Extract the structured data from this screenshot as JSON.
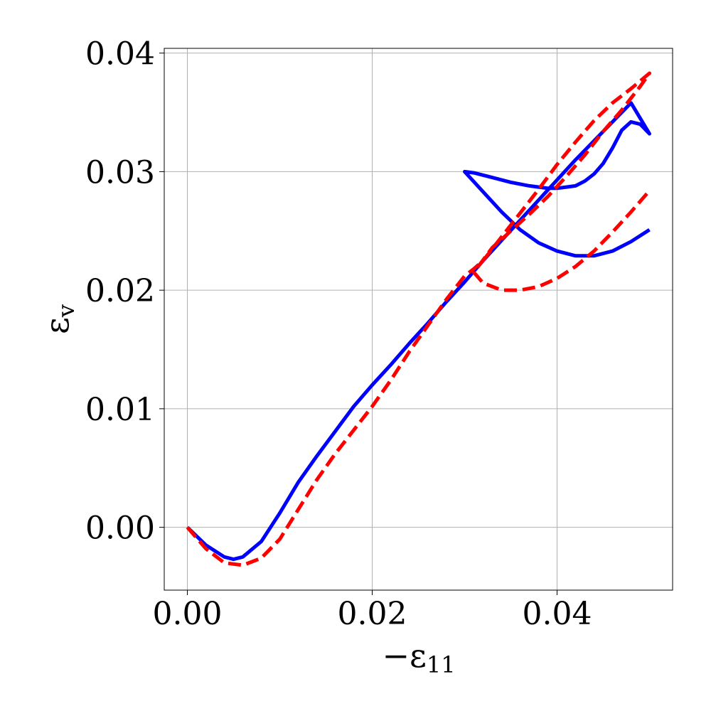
{
  "chart_data": {
    "type": "line",
    "xlabel": "−ε",
    "xlabel_sub": "11",
    "ylabel": "ε",
    "ylabel_sub": "v",
    "xlim": [
      -0.0025,
      0.0525
    ],
    "ylim": [
      -0.0053,
      0.0404
    ],
    "xticks": [
      0.0,
      0.02,
      0.04
    ],
    "xtick_labels": [
      "0.00",
      "0.02",
      "0.04"
    ],
    "yticks": [
      0.0,
      0.01,
      0.02,
      0.03,
      0.04
    ],
    "ytick_labels": [
      "0.00",
      "0.01",
      "0.02",
      "0.03",
      "0.04"
    ],
    "grid": true,
    "series": [
      {
        "color": "#0000ff",
        "style": "solid",
        "x": [
          0.0,
          0.002,
          0.004,
          0.005,
          0.006,
          0.008,
          0.01,
          0.012,
          0.014,
          0.016,
          0.018,
          0.02,
          0.022,
          0.024,
          0.026,
          0.028,
          0.03,
          0.032,
          0.034,
          0.036,
          0.038,
          0.04,
          0.042,
          0.044,
          0.046,
          0.048,
          0.05,
          0.049,
          0.048,
          0.047,
          0.046,
          0.045,
          0.044,
          0.043,
          0.042,
          0.041,
          0.04,
          0.039,
          0.037,
          0.035,
          0.033,
          0.031,
          0.03,
          0.032,
          0.034,
          0.036,
          0.038,
          0.04,
          0.042,
          0.044,
          0.046,
          0.048,
          0.05
        ],
        "y": [
          0.0,
          -0.0015,
          -0.0025,
          -0.0027,
          -0.0025,
          -0.0012,
          0.0012,
          0.0038,
          0.006,
          0.0081,
          0.0102,
          0.012,
          0.0137,
          0.0155,
          0.0172,
          0.019,
          0.0207,
          0.0225,
          0.0242,
          0.0259,
          0.0276,
          0.0293,
          0.031,
          0.0326,
          0.0342,
          0.0358,
          0.0332,
          0.034,
          0.0342,
          0.0335,
          0.032,
          0.0307,
          0.0298,
          0.0292,
          0.0288,
          0.0287,
          0.0286,
          0.0286,
          0.0288,
          0.0291,
          0.0295,
          0.0299,
          0.03,
          0.0283,
          0.0266,
          0.0251,
          0.024,
          0.0233,
          0.0229,
          0.0229,
          0.0233,
          0.0241,
          0.0251
        ]
      },
      {
        "color": "#ff0000",
        "style": "dashed",
        "x": [
          0.0,
          0.002,
          0.004,
          0.006,
          0.008,
          0.01,
          0.012,
          0.014,
          0.016,
          0.018,
          0.02,
          0.022,
          0.024,
          0.026,
          0.028,
          0.03,
          0.031,
          0.032,
          0.034,
          0.036,
          0.038,
          0.04,
          0.042,
          0.044,
          0.046,
          0.048,
          0.05,
          0.049,
          0.047,
          0.045,
          0.043,
          0.041,
          0.039,
          0.037,
          0.035,
          0.033,
          0.031,
          0.032,
          0.034,
          0.036,
          0.038,
          0.04,
          0.042,
          0.044,
          0.046,
          0.048,
          0.05
        ],
        "y": [
          0.0,
          -0.0018,
          -0.003,
          -0.0032,
          -0.0026,
          -0.001,
          0.0015,
          0.004,
          0.0062,
          0.0082,
          0.0102,
          0.0124,
          0.0148,
          0.017,
          0.0192,
          0.0212,
          0.0218,
          0.0225,
          0.0245,
          0.0265,
          0.0285,
          0.0306,
          0.0325,
          0.0343,
          0.0358,
          0.037,
          0.0383,
          0.0372,
          0.0352,
          0.0334,
          0.0314,
          0.0296,
          0.0279,
          0.0264,
          0.025,
          0.0236,
          0.0215,
          0.0206,
          0.02,
          0.02,
          0.0203,
          0.021,
          0.022,
          0.0233,
          0.0249,
          0.0266,
          0.0284
        ]
      }
    ]
  }
}
